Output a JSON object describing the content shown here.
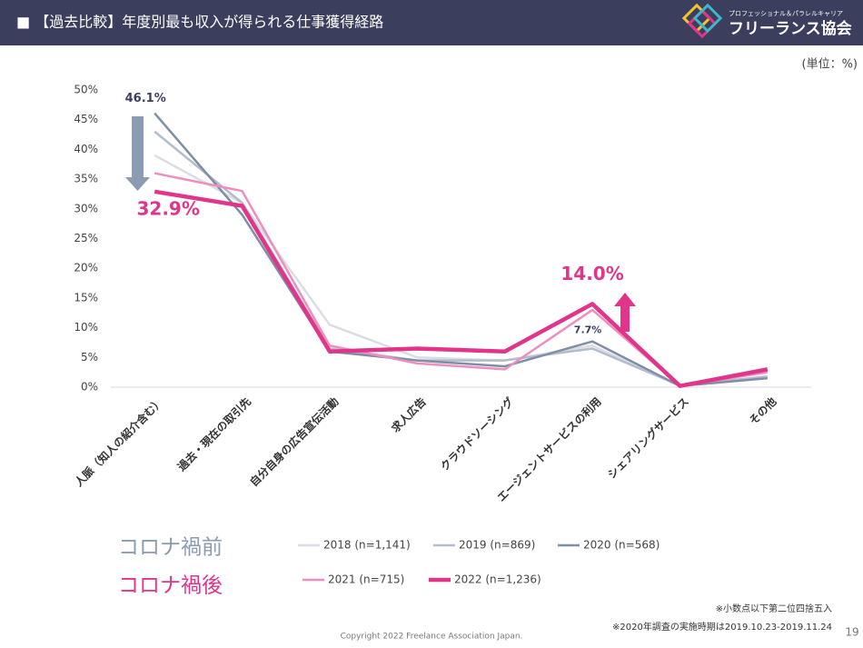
{
  "header": {
    "title": "■ 【過去比較】年度別最も収入が得られる仕事獲得経路",
    "logo_tagline": "プロフェッショナル＆パラレルキャリア",
    "logo_name": "フリーランス協会"
  },
  "chart_data": {
    "type": "line",
    "unit_note": "(単位：%)",
    "categories": [
      "人脈（知人の紹介含む）",
      "過去・現在の取引先",
      "自分自身の広告宣伝活動",
      "求人広告",
      "クラウドソーシング",
      "エージェントサービスの利用",
      "シェアリングサービス",
      "その他"
    ],
    "ylim": [
      0,
      50
    ],
    "yticks": [
      {
        "value": 0,
        "label": "0%"
      },
      {
        "value": 5,
        "label": "5%"
      },
      {
        "value": 10,
        "label": "10%"
      },
      {
        "value": 15,
        "label": "15%"
      },
      {
        "value": 20,
        "label": "20%"
      },
      {
        "value": 25,
        "label": "25%"
      },
      {
        "value": 30,
        "label": "30%"
      },
      {
        "value": 35,
        "label": "35%"
      },
      {
        "value": 40,
        "label": "40%"
      },
      {
        "value": 45,
        "label": "45%"
      },
      {
        "value": 50,
        "label": "50%"
      }
    ],
    "series": [
      {
        "name": "2018 (n=1,141)",
        "color": "#d9dde4",
        "values": [
          39,
          31,
          10.5,
          5,
          4.5,
          7,
          0.2,
          1.5
        ]
      },
      {
        "name": "2019 (n=869)",
        "color": "#b3bccb",
        "values": [
          43,
          31,
          6.5,
          4.5,
          4.5,
          6.5,
          0.3,
          1.8
        ]
      },
      {
        "name": "2020 (n=568)",
        "color": "#7f8da6",
        "values": [
          46.1,
          29,
          6,
          4.5,
          3.5,
          7.7,
          0.2,
          1.5
        ],
        "value_labels": [
          "46.1%",
          null,
          null,
          null,
          null,
          "7.7%",
          null,
          null
        ]
      },
      {
        "name": "2021 (n=715)",
        "color": "#ec8fbd",
        "values": [
          36,
          33,
          7,
          4,
          3,
          13,
          0.2,
          2.5
        ]
      },
      {
        "name": "2022 (n=1,236)",
        "color": "#e0358a",
        "values": [
          32.9,
          30.5,
          6,
          6.5,
          6,
          14.0,
          0.2,
          3
        ],
        "value_labels": [
          "32.9%",
          null,
          null,
          null,
          null,
          "14.0%",
          null,
          null
        ]
      }
    ],
    "legend_groups": [
      {
        "label": "コロナ禍前",
        "color": "#8b9bb1",
        "series": [
          0,
          1,
          2
        ]
      },
      {
        "label": "コロナ禍後",
        "color": "#e0358a",
        "series": [
          3,
          4
        ]
      }
    ]
  },
  "footer": {
    "note1": "※小数点以下第二位四捨五入",
    "note2": "※2020年調査の実施時期は2019.10.23-2019.11.24",
    "copyright": "Copyright 2022 Freelance Association Japan.",
    "page": "19"
  }
}
